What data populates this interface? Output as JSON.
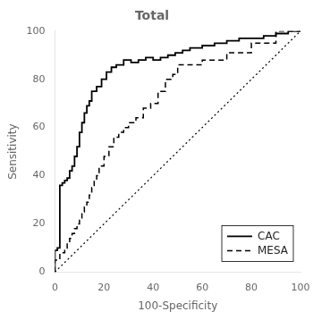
{
  "chart_data": {
    "type": "line",
    "title": "Total",
    "xlabel": "100-Specificity",
    "ylabel": "Sensitivity",
    "xlim": [
      0,
      100
    ],
    "ylim": [
      0,
      100
    ],
    "xticks": [
      0,
      20,
      40,
      60,
      80,
      100
    ],
    "yticks": [
      0,
      20,
      40,
      60,
      80,
      100
    ],
    "grid": false,
    "legend": "lower right",
    "series": [
      {
        "type": "line",
        "line_style": "dotted",
        "color": "#000000",
        "x": [
          0,
          100
        ],
        "values": [
          0,
          100
        ]
      },
      {
        "name": "CAC",
        "type": "step",
        "line_style": "solid",
        "color": "#000000",
        "x": [
          0,
          0,
          1,
          1,
          2,
          2,
          3,
          3,
          4,
          4,
          5,
          5,
          6,
          6,
          7,
          7,
          8,
          8,
          9,
          9,
          10,
          10,
          11,
          11,
          12,
          12,
          13,
          13,
          14,
          14,
          15,
          15,
          17,
          17,
          19,
          19,
          21,
          21,
          23,
          23,
          25,
          25,
          28,
          28,
          31,
          31,
          34,
          34,
          37,
          37,
          40,
          40,
          43,
          43,
          46,
          46,
          49,
          49,
          52,
          52,
          55,
          60,
          65,
          70,
          75,
          80,
          85,
          90,
          95,
          100
        ],
        "values": [
          0,
          9,
          9,
          10,
          10,
          36,
          36,
          37,
          37,
          38,
          38,
          39,
          39,
          42,
          42,
          44,
          44,
          48,
          48,
          52,
          52,
          58,
          58,
          62,
          62,
          66,
          66,
          69,
          69,
          71,
          71,
          75,
          75,
          77,
          77,
          80,
          80,
          83,
          83,
          85,
          85,
          86,
          86,
          88,
          88,
          87,
          87,
          88,
          88,
          89,
          89,
          88,
          88,
          89,
          89,
          90,
          90,
          91,
          91,
          92,
          92,
          93,
          94,
          95,
          96,
          97,
          97,
          98,
          99,
          100
        ]
      },
      {
        "name": "MESA",
        "type": "step",
        "line_style": "dashed",
        "color": "#000000",
        "x": [
          0,
          0,
          2,
          4,
          5,
          6,
          7,
          8,
          9,
          10,
          11,
          12,
          13,
          14,
          15,
          16,
          17,
          18,
          20,
          22,
          24,
          26,
          28,
          30,
          33,
          36,
          39,
          42,
          45,
          48,
          50,
          60,
          70,
          80,
          90,
          100
        ],
        "values": [
          0,
          3,
          5,
          8,
          10,
          12,
          14,
          16,
          18,
          20,
          22,
          25,
          27,
          29,
          32,
          35,
          38,
          40,
          44,
          48,
          52,
          56,
          58,
          60,
          62,
          64,
          68,
          70,
          75,
          80,
          82,
          86,
          88,
          91,
          95,
          100
        ]
      }
    ]
  }
}
